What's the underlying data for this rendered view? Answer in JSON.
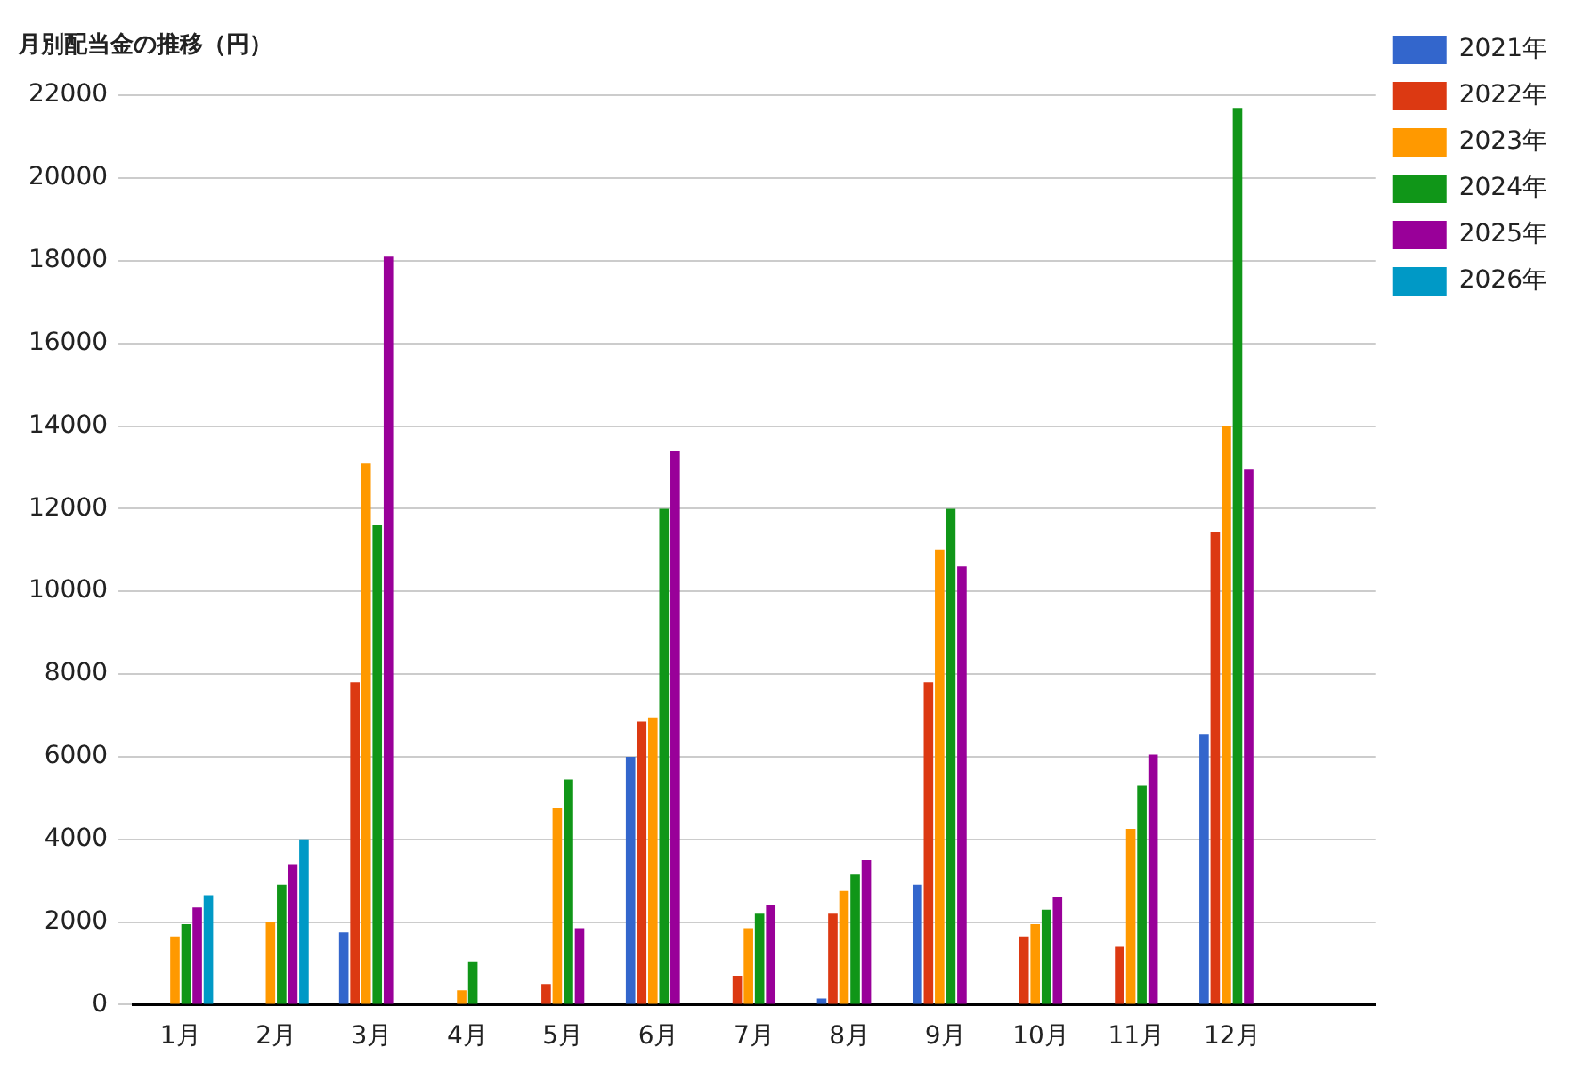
{
  "chart_data": {
    "type": "bar",
    "title": "月別配当金の推移（円）",
    "categories": [
      "1月",
      "2月",
      "3月",
      "4月",
      "5月",
      "6月",
      "7月",
      "8月",
      "9月",
      "10月",
      "11月",
      "12月",
      null
    ],
    "series": [
      {
        "name": "2021年",
        "color": "#3366cc",
        "values": [
          null,
          null,
          1750,
          null,
          null,
          6000,
          null,
          150,
          2900,
          null,
          null,
          6550,
          null
        ]
      },
      {
        "name": "2022年",
        "color": "#dc3912",
        "values": [
          null,
          null,
          7800,
          null,
          500,
          6850,
          700,
          2200,
          7800,
          1650,
          1400,
          11450,
          null
        ]
      },
      {
        "name": "2023年",
        "color": "#ff9900",
        "values": [
          1650,
          2000,
          13100,
          350,
          4750,
          6950,
          1850,
          2750,
          11000,
          1950,
          4250,
          14000,
          null
        ]
      },
      {
        "name": "2024年",
        "color": "#109618",
        "values": [
          1950,
          2900,
          11600,
          1050,
          5450,
          12000,
          2200,
          3150,
          12000,
          2300,
          5300,
          21700,
          null
        ]
      },
      {
        "name": "2025年",
        "color": "#990099",
        "values": [
          2350,
          3400,
          18100,
          null,
          1850,
          13400,
          2400,
          3500,
          10600,
          2600,
          6050,
          12950,
          null
        ]
      },
      {
        "name": "2026年",
        "color": "#0099c6",
        "values": [
          2650,
          4000,
          null,
          null,
          null,
          null,
          null,
          null,
          null,
          null,
          null,
          null,
          null
        ]
      }
    ],
    "ylim": [
      0,
      22000
    ],
    "yticks": [
      0,
      2000,
      4000,
      6000,
      8000,
      10000,
      12000,
      14000,
      16000,
      18000,
      20000,
      22000
    ],
    "grid": "y",
    "legend": "top right"
  }
}
